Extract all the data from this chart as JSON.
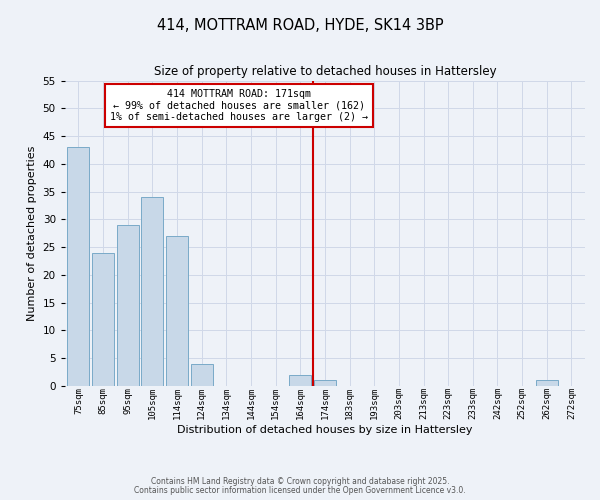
{
  "title": "414, MOTTRAM ROAD, HYDE, SK14 3BP",
  "subtitle": "Size of property relative to detached houses in Hattersley",
  "xlabel": "Distribution of detached houses by size in Hattersley",
  "ylabel": "Number of detached properties",
  "bar_labels": [
    "75sqm",
    "85sqm",
    "95sqm",
    "105sqm",
    "114sqm",
    "124sqm",
    "134sqm",
    "144sqm",
    "154sqm",
    "164sqm",
    "174sqm",
    "183sqm",
    "193sqm",
    "203sqm",
    "213sqm",
    "223sqm",
    "233sqm",
    "242sqm",
    "252sqm",
    "262sqm",
    "272sqm"
  ],
  "bar_values": [
    43,
    24,
    29,
    34,
    27,
    4,
    0,
    0,
    0,
    2,
    1,
    0,
    0,
    0,
    0,
    0,
    0,
    0,
    0,
    1,
    0
  ],
  "bar_color": "#c8d8e8",
  "bar_edge_color": "#7aaac8",
  "grid_color": "#d0d8e8",
  "background_color": "#eef2f8",
  "vline_color": "#cc0000",
  "annotation_text": "414 MOTTRAM ROAD: 171sqm\n← 99% of detached houses are smaller (162)\n1% of semi-detached houses are larger (2) →",
  "annotation_box_color": "#ffffff",
  "annotation_box_edge": "#cc0000",
  "ylim": [
    0,
    55
  ],
  "yticks": [
    0,
    5,
    10,
    15,
    20,
    25,
    30,
    35,
    40,
    45,
    50,
    55
  ],
  "footnote1": "Contains HM Land Registry data © Crown copyright and database right 2025.",
  "footnote2": "Contains public sector information licensed under the Open Government Licence v3.0."
}
